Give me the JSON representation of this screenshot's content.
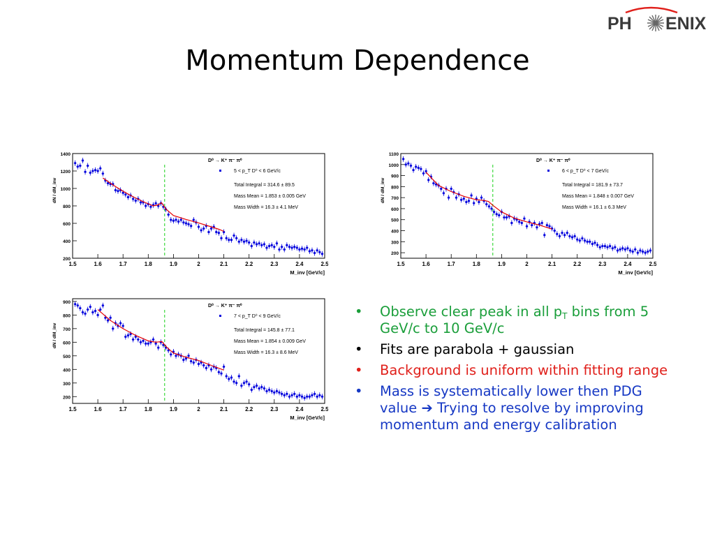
{
  "logo": {
    "text_left": "PH",
    "text_right": "ENIX"
  },
  "title": "Momentum Dependence",
  "colors": {
    "green": "#1a9e3a",
    "black": "#000000",
    "red": "#e0201b",
    "blue": "#1638c4",
    "fit": "#e60000",
    "points": "#0000dd",
    "peak_line": "#2bd62b"
  },
  "bullets": [
    {
      "color": "green",
      "parts": [
        "Observe clear peak in all p",
        "T",
        " bins from 5 GeV/c to 10 GeV/c"
      ]
    },
    {
      "color": "black",
      "parts": [
        "Fits are parabola + gaussian"
      ]
    },
    {
      "color": "red",
      "parts": [
        "Background is uniform within fitting range"
      ]
    },
    {
      "color": "blue",
      "parts": [
        "Mass is systematically lower then PDG value ",
        "➔",
        " Trying to resolve by improving momentum and energy calibration"
      ]
    }
  ],
  "chart_data": [
    {
      "type": "scatter",
      "ylabel": "dN / dM_inv",
      "xlabel": "M_inv [GeV/c]",
      "xlim": [
        1.5,
        2.5
      ],
      "ylim": [
        200,
        1400
      ],
      "xticks": [
        "1.5",
        "1.6",
        "1.7",
        "1.8",
        "1.9",
        "2",
        "2.1",
        "2.2",
        "2.3",
        "2.4",
        "2.5"
      ],
      "yticks": [
        "200",
        "400",
        "600",
        "800",
        "1000",
        "1200",
        "1400"
      ],
      "peak_line_x": 1.865,
      "legend": {
        "decay": "D⁰ → K⁺ π⁻ π⁰",
        "bin": "5 < p_T D⁰ < 6 GeV/c",
        "stats": [
          "Total Integral = 314.6 ± 89.5",
          "Mass Mean = 1.853 ± 0.005 GeV",
          "Mass Width = 16.3 ± 4.1 MeV"
        ]
      },
      "fit": {
        "x": [
          1.62,
          1.66,
          1.7,
          1.74,
          1.78,
          1.82,
          1.84,
          1.853,
          1.87,
          1.9,
          1.95,
          2.0,
          2.05,
          2.08,
          2.1
        ],
        "y": [
          1120,
          1040,
          968,
          905,
          848,
          800,
          812,
          836,
          764,
          690,
          645,
          605,
          560,
          532,
          508
        ]
      },
      "points": {
        "x": [
          1.51,
          1.52,
          1.53,
          1.54,
          1.55,
          1.56,
          1.57,
          1.58,
          1.59,
          1.6,
          1.61,
          1.62,
          1.63,
          1.64,
          1.65,
          1.66,
          1.67,
          1.68,
          1.69,
          1.7,
          1.71,
          1.72,
          1.73,
          1.74,
          1.75,
          1.76,
          1.77,
          1.78,
          1.79,
          1.8,
          1.81,
          1.82,
          1.83,
          1.84,
          1.85,
          1.86,
          1.87,
          1.88,
          1.89,
          1.9,
          1.91,
          1.92,
          1.93,
          1.94,
          1.95,
          1.96,
          1.97,
          1.98,
          1.99,
          2.0,
          2.01,
          2.02,
          2.03,
          2.04,
          2.05,
          2.06,
          2.07,
          2.08,
          2.09,
          2.1,
          2.11,
          2.12,
          2.13,
          2.14,
          2.15,
          2.16,
          2.17,
          2.18,
          2.19,
          2.2,
          2.21,
          2.22,
          2.23,
          2.24,
          2.25,
          2.26,
          2.27,
          2.28,
          2.29,
          2.3,
          2.31,
          2.32,
          2.33,
          2.34,
          2.35,
          2.36,
          2.37,
          2.38,
          2.39,
          2.4,
          2.41,
          2.42,
          2.43,
          2.44,
          2.45,
          2.46,
          2.47,
          2.48,
          2.49
        ],
        "y": [
          1290,
          1250,
          1260,
          1320,
          1190,
          1260,
          1180,
          1200,
          1210,
          1200,
          1230,
          1170,
          1090,
          1060,
          1050,
          1050,
          980,
          970,
          980,
          950,
          930,
          900,
          920,
          880,
          860,
          880,
          840,
          840,
          800,
          820,
          790,
          810,
          830,
          800,
          830,
          790,
          760,
          700,
          640,
          630,
          640,
          620,
          640,
          610,
          600,
          590,
          570,
          640,
          610,
          560,
          520,
          540,
          570,
          500,
          540,
          560,
          500,
          490,
          430,
          500,
          430,
          410,
          410,
          460,
          430,
          390,
          410,
          390,
          400,
          380,
          340,
          380,
          360,
          370,
          350,
          360,
          320,
          340,
          350,
          330,
          370,
          300,
          330,
          300,
          350,
          330,
          320,
          330,
          320,
          300,
          310,
          300,
          320,
          280,
          290,
          260,
          290,
          270,
          250
        ]
      }
    },
    {
      "type": "scatter",
      "ylabel": "dN / dM_inv",
      "xlabel": "M_inv [GeV/c]",
      "xlim": [
        1.5,
        2.5
      ],
      "ylim": [
        150,
        1100
      ],
      "xticks": [
        "1.5",
        "1.6",
        "1.7",
        "1.8",
        "1.9",
        "2",
        "2.1",
        "2.2",
        "2.3",
        "2.4",
        "2.5"
      ],
      "yticks": [
        "200",
        "300",
        "400",
        "500",
        "600",
        "700",
        "800",
        "900",
        "1000",
        "1100"
      ],
      "peak_line_x": 1.865,
      "legend": {
        "decay": "D⁰ → K⁺ π⁻ π⁰",
        "bin": "6 < p_T D⁰ < 7 GeV/c",
        "stats": [
          "Total Integral = 181.9 ± 73.7",
          "Mass Mean = 1.848 ± 0.007 GeV",
          "Mass Width = 16.1 ± 6.3 MeV"
        ]
      },
      "fit": {
        "x": [
          1.6,
          1.65,
          1.7,
          1.75,
          1.8,
          1.83,
          1.848,
          1.865,
          1.9,
          1.95,
          2.0,
          2.05,
          2.1
        ],
        "y": [
          930,
          810,
          755,
          712,
          680,
          675,
          665,
          630,
          570,
          515,
          480,
          450,
          415
        ]
      },
      "points": {
        "x": [
          1.51,
          1.52,
          1.53,
          1.54,
          1.55,
          1.56,
          1.57,
          1.58,
          1.59,
          1.6,
          1.61,
          1.62,
          1.63,
          1.64,
          1.65,
          1.66,
          1.67,
          1.68,
          1.69,
          1.7,
          1.71,
          1.72,
          1.73,
          1.74,
          1.75,
          1.76,
          1.77,
          1.78,
          1.79,
          1.8,
          1.81,
          1.82,
          1.83,
          1.84,
          1.85,
          1.86,
          1.87,
          1.88,
          1.89,
          1.9,
          1.91,
          1.92,
          1.93,
          1.94,
          1.95,
          1.96,
          1.97,
          1.98,
          1.99,
          2.0,
          2.01,
          2.02,
          2.03,
          2.04,
          2.05,
          2.06,
          2.07,
          2.08,
          2.09,
          2.1,
          2.11,
          2.12,
          2.13,
          2.14,
          2.15,
          2.16,
          2.17,
          2.18,
          2.19,
          2.2,
          2.21,
          2.22,
          2.23,
          2.24,
          2.25,
          2.26,
          2.27,
          2.28,
          2.29,
          2.3,
          2.31,
          2.32,
          2.33,
          2.34,
          2.35,
          2.36,
          2.37,
          2.38,
          2.39,
          2.4,
          2.41,
          2.42,
          2.43,
          2.44,
          2.45,
          2.46,
          2.47,
          2.48,
          2.49
        ],
        "y": [
          1050,
          1000,
          1010,
          990,
          950,
          980,
          970,
          960,
          920,
          940,
          860,
          890,
          830,
          820,
          810,
          780,
          740,
          780,
          700,
          780,
          750,
          700,
          730,
          680,
          690,
          660,
          670,
          720,
          650,
          690,
          660,
          700,
          670,
          640,
          620,
          600,
          570,
          550,
          540,
          570,
          520,
          520,
          530,
          470,
          510,
          500,
          480,
          470,
          510,
          440,
          480,
          450,
          470,
          430,
          460,
          470,
          360,
          450,
          440,
          420,
          400,
          370,
          350,
          380,
          360,
          380,
          350,
          340,
          350,
          320,
          310,
          330,
          310,
          300,
          300,
          280,
          290,
          270,
          250,
          260,
          260,
          250,
          260,
          240,
          250,
          220,
          230,
          240,
          230,
          240,
          220,
          210,
          230,
          200,
          220,
          210,
          200,
          210,
          220
        ]
      }
    },
    {
      "type": "scatter",
      "ylabel": "dN / dM_inv",
      "xlabel": "M_inv [GeV/c]",
      "xlim": [
        1.5,
        2.5
      ],
      "ylim": [
        150,
        920
      ],
      "xticks": [
        "1.5",
        "1.6",
        "1.7",
        "1.8",
        "1.9",
        "2",
        "2.1",
        "2.2",
        "2.3",
        "2.4",
        "2.5"
      ],
      "yticks": [
        "200",
        "300",
        "400",
        "500",
        "600",
        "700",
        "800",
        "900"
      ],
      "peak_line_x": 1.865,
      "legend": {
        "decay": "D⁰ → K⁺ π⁻ π⁰",
        "bin": "7 < p_T D⁰ < 9 GeV/c",
        "stats": [
          "Total Integral = 145.8 ± 77.1",
          "Mass Mean = 1.854 ± 0.009 GeV",
          "Mass Width = 16.3 ± 8.6 MeV"
        ]
      },
      "fit": {
        "x": [
          1.6,
          1.65,
          1.7,
          1.75,
          1.8,
          1.83,
          1.854,
          1.875,
          1.9,
          1.95,
          2.0,
          2.05,
          2.1
        ],
        "y": [
          840,
          760,
          700,
          650,
          610,
          600,
          605,
          560,
          520,
          490,
          465,
          430,
          395
        ]
      },
      "points": {
        "x": [
          1.51,
          1.52,
          1.53,
          1.54,
          1.55,
          1.56,
          1.57,
          1.58,
          1.59,
          1.6,
          1.61,
          1.62,
          1.63,
          1.64,
          1.65,
          1.66,
          1.67,
          1.68,
          1.69,
          1.7,
          1.71,
          1.72,
          1.73,
          1.74,
          1.75,
          1.76,
          1.77,
          1.78,
          1.79,
          1.8,
          1.81,
          1.82,
          1.83,
          1.84,
          1.85,
          1.86,
          1.87,
          1.88,
          1.89,
          1.9,
          1.91,
          1.92,
          1.93,
          1.94,
          1.95,
          1.96,
          1.97,
          1.98,
          1.99,
          2.0,
          2.01,
          2.02,
          2.03,
          2.04,
          2.05,
          2.06,
          2.07,
          2.08,
          2.09,
          2.1,
          2.11,
          2.12,
          2.13,
          2.14,
          2.15,
          2.16,
          2.17,
          2.18,
          2.19,
          2.2,
          2.21,
          2.22,
          2.23,
          2.24,
          2.25,
          2.26,
          2.27,
          2.28,
          2.29,
          2.3,
          2.31,
          2.32,
          2.33,
          2.34,
          2.35,
          2.36,
          2.37,
          2.38,
          2.39,
          2.4,
          2.41,
          2.42,
          2.43,
          2.44,
          2.45,
          2.46,
          2.47,
          2.48,
          2.49
        ],
        "y": [
          880,
          870,
          850,
          820,
          810,
          840,
          860,
          820,
          830,
          800,
          840,
          870,
          780,
          760,
          780,
          700,
          740,
          720,
          740,
          720,
          640,
          650,
          660,
          620,
          640,
          620,
          600,
          610,
          590,
          590,
          600,
          620,
          590,
          560,
          600,
          580,
          560,
          540,
          510,
          530,
          500,
          510,
          500,
          470,
          480,
          500,
          460,
          450,
          470,
          440,
          450,
          430,
          410,
          430,
          400,
          420,
          410,
          380,
          370,
          420,
          350,
          330,
          340,
          310,
          300,
          350,
          280,
          300,
          310,
          290,
          250,
          270,
          280,
          260,
          270,
          260,
          240,
          250,
          240,
          230,
          240,
          230,
          220,
          210,
          220,
          200,
          210,
          220,
          200,
          210,
          200,
          190,
          200,
          200,
          210,
          220,
          200,
          210,
          200
        ]
      }
    }
  ]
}
